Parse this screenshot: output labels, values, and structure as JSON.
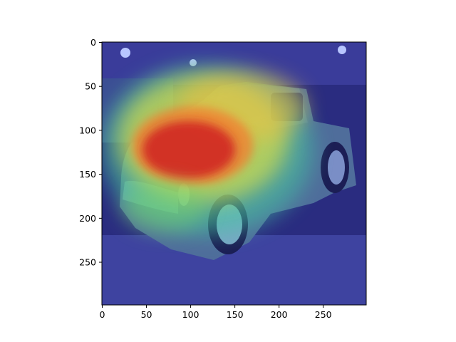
{
  "chart_data": {
    "type": "heatmap",
    "title": "",
    "xlabel": "",
    "ylabel": "",
    "description_role": "attention / saliency heatmap overlaid on a photo of a vintage pickup truck",
    "xlim": [
      0,
      299
    ],
    "ylim": [
      299,
      0
    ],
    "xticks": [
      0,
      50,
      100,
      150,
      200,
      250
    ],
    "yticks": [
      0,
      50,
      100,
      150,
      200,
      250
    ],
    "colormap": "jet",
    "overlay_alpha": 0.55,
    "hotspots": [
      {
        "name": "hood-center",
        "x": 95,
        "y": 125,
        "intensity": 1.0
      },
      {
        "name": "hood-front",
        "x": 70,
        "y": 150,
        "intensity": 0.85
      },
      {
        "name": "cab-roof",
        "x": 140,
        "y": 80,
        "intensity": 0.55
      },
      {
        "name": "windshield",
        "x": 175,
        "y": 100,
        "intensity": 0.5
      },
      {
        "name": "grille",
        "x": 90,
        "y": 200,
        "intensity": 0.55
      },
      {
        "name": "truck-bed",
        "x": 230,
        "y": 130,
        "intensity": 0.25
      }
    ],
    "colors": {
      "background": "#26267a",
      "floor": "#4a4fa8",
      "truck_body": "#5a7fa0",
      "axis": "#000000"
    }
  }
}
